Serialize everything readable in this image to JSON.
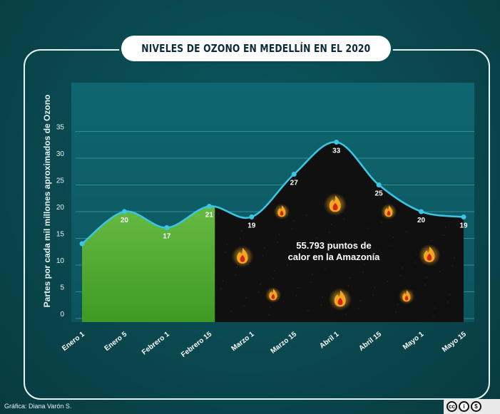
{
  "header": {
    "title": "NIVELES DE OZONO EN MEDELLÍN EN EL 2020"
  },
  "credit": "Gráfica: Diana Varón S.",
  "license": {
    "icons": [
      "cc-icon",
      "by-icon",
      "nc-icon"
    ],
    "labels": [
      "cc",
      "i",
      "$"
    ]
  },
  "colors": {
    "plot_bg": "#0e5e68",
    "line": "#3cc6e6",
    "green_area": "#5cb638",
    "dark_area": "#101010",
    "grid": "#2f8e96",
    "flame": "#f5a623"
  },
  "chart_data": {
    "type": "area",
    "title": "NIVELES DE OZONO EN MEDELLÍN EN EL 2020",
    "ylabel": "Partes por cada mil millones aproximados de Ozono",
    "xlabel": "",
    "categories": [
      "Enero 1",
      "Enero 5",
      "Febrero 1",
      "Febrero 15",
      "Marzo 1",
      "Marzo 15",
      "Abril 1",
      "Abril 15",
      "Mayo 1",
      "Mayo 15"
    ],
    "series": [
      {
        "values": [
          14,
          20,
          17,
          21,
          19,
          27,
          33,
          25,
          20,
          19
        ]
      }
    ],
    "data_labels": [
      "",
      "20",
      "17",
      "21",
      "19",
      "27",
      "33",
      "25",
      "20",
      "19"
    ],
    "ylim": [
      0,
      40
    ],
    "yticks": [
      0,
      5,
      10,
      15,
      20,
      25,
      30,
      35
    ],
    "grid": true,
    "highlight_from_index": 3,
    "annotation": "55.793 puntos de calor en la Amazonía",
    "annotation_lines": [
      "55.793 puntos de",
      "calor en la Amazonía"
    ]
  }
}
